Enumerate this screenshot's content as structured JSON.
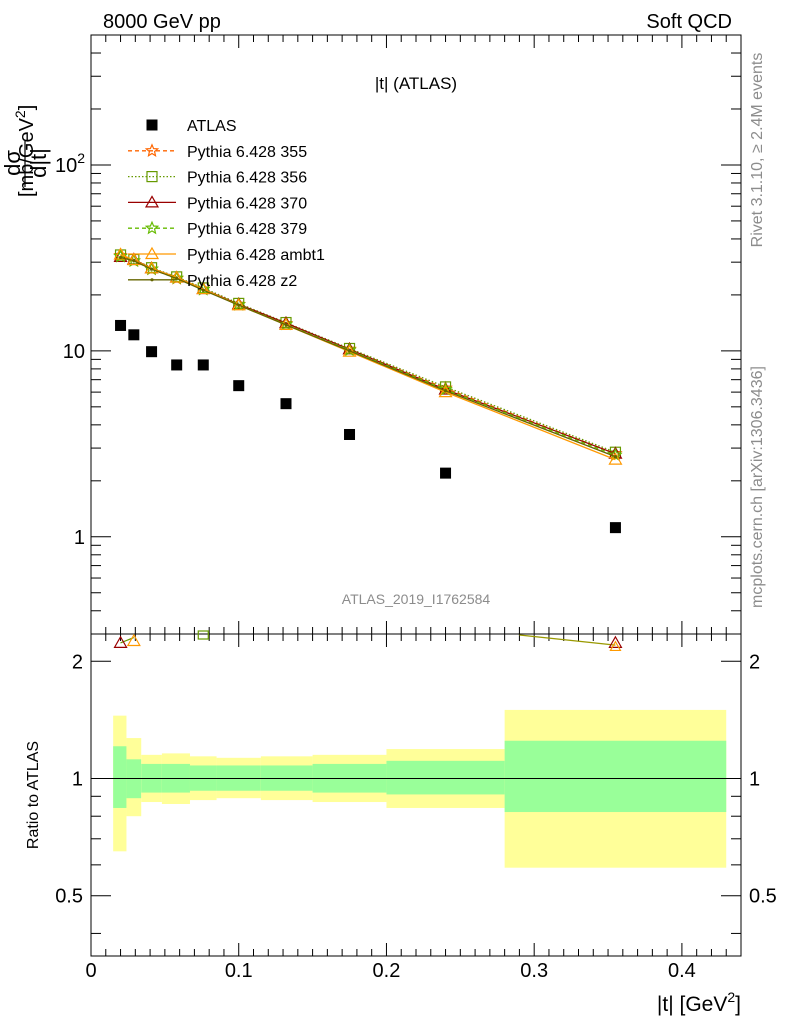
{
  "header": {
    "left": "8000 GeV pp",
    "right": "Soft QCD"
  },
  "side": {
    "rivet": "Rivet 3.1.10, ≥ 2.4M events",
    "mcplots": "mcplots.cern.ch [arXiv:1306.3436]"
  },
  "chart_data": {
    "type": "line",
    "title": "|t| (ATLAS)",
    "watermark": "ATLAS_2019_I1762584",
    "xlabel": "|t| [GeV²]",
    "ylabel": "dσ/d|t| [mb/GeV²]",
    "ratio_ylabel": "Ratio to ATLAS",
    "xlim": [
      0,
      0.44
    ],
    "ylim": [
      0.3,
      500
    ],
    "yscale": "log",
    "ratio_ylim": [
      0.35,
      2.35
    ],
    "x_ticks": [
      "0",
      "0.1",
      "0.2",
      "0.3",
      "0.4"
    ],
    "y_ticks": [
      "1",
      "10",
      "10²"
    ],
    "ratio_ticks": [
      "0.5",
      "1",
      "2"
    ],
    "legend_position": "top-left",
    "x": [
      0.02,
      0.029,
      0.041,
      0.058,
      0.076,
      0.1,
      0.132,
      0.175,
      0.24,
      0.355
    ],
    "data": {
      "name": "ATLAS",
      "values": [
        13.7,
        12.2,
        9.9,
        8.4,
        8.4,
        6.5,
        5.2,
        3.55,
        2.2,
        1.12
      ]
    },
    "series": [
      {
        "name": "Pythia 6.428 355",
        "color": "#ff6600",
        "dash": "4,3",
        "marker": "star",
        "values": [
          32.5,
          30.5,
          27.5,
          24.5,
          21.5,
          17.8,
          14.0,
          10.2,
          6.3,
          2.8
        ]
      },
      {
        "name": "Pythia 6.428 356",
        "color": "#669900",
        "dash": "1.5,2",
        "marker": "square",
        "values": [
          32.8,
          31.0,
          28.0,
          25.0,
          21.8,
          18.0,
          14.2,
          10.3,
          6.4,
          2.85
        ]
      },
      {
        "name": "Pythia 6.428 370",
        "color": "#990000",
        "dash": "",
        "marker": "triangle",
        "values": [
          32.0,
          31.0,
          27.8,
          24.8,
          21.5,
          17.8,
          14.1,
          10.2,
          6.2,
          2.8
        ]
      },
      {
        "name": "Pythia 6.428 379",
        "color": "#66bb00",
        "dash": "4,3",
        "marker": "star",
        "values": [
          32.2,
          30.5,
          27.5,
          24.6,
          21.4,
          17.7,
          13.9,
          10.1,
          6.2,
          2.75
        ]
      },
      {
        "name": "Pythia 6.428 ambt1",
        "color": "#ff9900",
        "dash": "",
        "marker": "triangle-open",
        "values": [
          33.0,
          30.8,
          27.8,
          24.8,
          21.5,
          17.6,
          13.8,
          9.9,
          6.0,
          2.6
        ]
      },
      {
        "name": "Pythia 6.428 z2",
        "color": "#666600",
        "dash": "",
        "marker": "dot",
        "values": [
          31.8,
          30.5,
          27.5,
          24.5,
          21.2,
          17.6,
          13.8,
          10.0,
          6.1,
          2.7
        ]
      }
    ],
    "ratio_bands": {
      "edges": [
        0.015,
        0.024,
        0.034,
        0.048,
        0.067,
        0.085,
        0.115,
        0.15,
        0.2,
        0.28,
        0.43
      ],
      "inner": [
        [
          0.84,
          1.21
        ],
        [
          0.89,
          1.12
        ],
        [
          0.92,
          1.09
        ],
        [
          0.92,
          1.09
        ],
        [
          0.93,
          1.08
        ],
        [
          0.93,
          1.08
        ],
        [
          0.93,
          1.08
        ],
        [
          0.92,
          1.09
        ],
        [
          0.91,
          1.11
        ],
        [
          0.82,
          1.25
        ]
      ],
      "outer": [
        [
          0.65,
          1.45
        ],
        [
          0.8,
          1.27
        ],
        [
          0.87,
          1.15
        ],
        [
          0.86,
          1.16
        ],
        [
          0.88,
          1.14
        ],
        [
          0.89,
          1.13
        ],
        [
          0.88,
          1.14
        ],
        [
          0.87,
          1.15
        ],
        [
          0.84,
          1.19
        ],
        [
          0.59,
          1.5
        ]
      ],
      "inner_color": "#99ff99",
      "outer_color": "#ffff99"
    },
    "ratio_visible": {
      "x": [
        0.02,
        0.029,
        0.076,
        0.355
      ],
      "values": [
        2.23,
        2.3,
        2.35,
        2.2
      ]
    }
  }
}
